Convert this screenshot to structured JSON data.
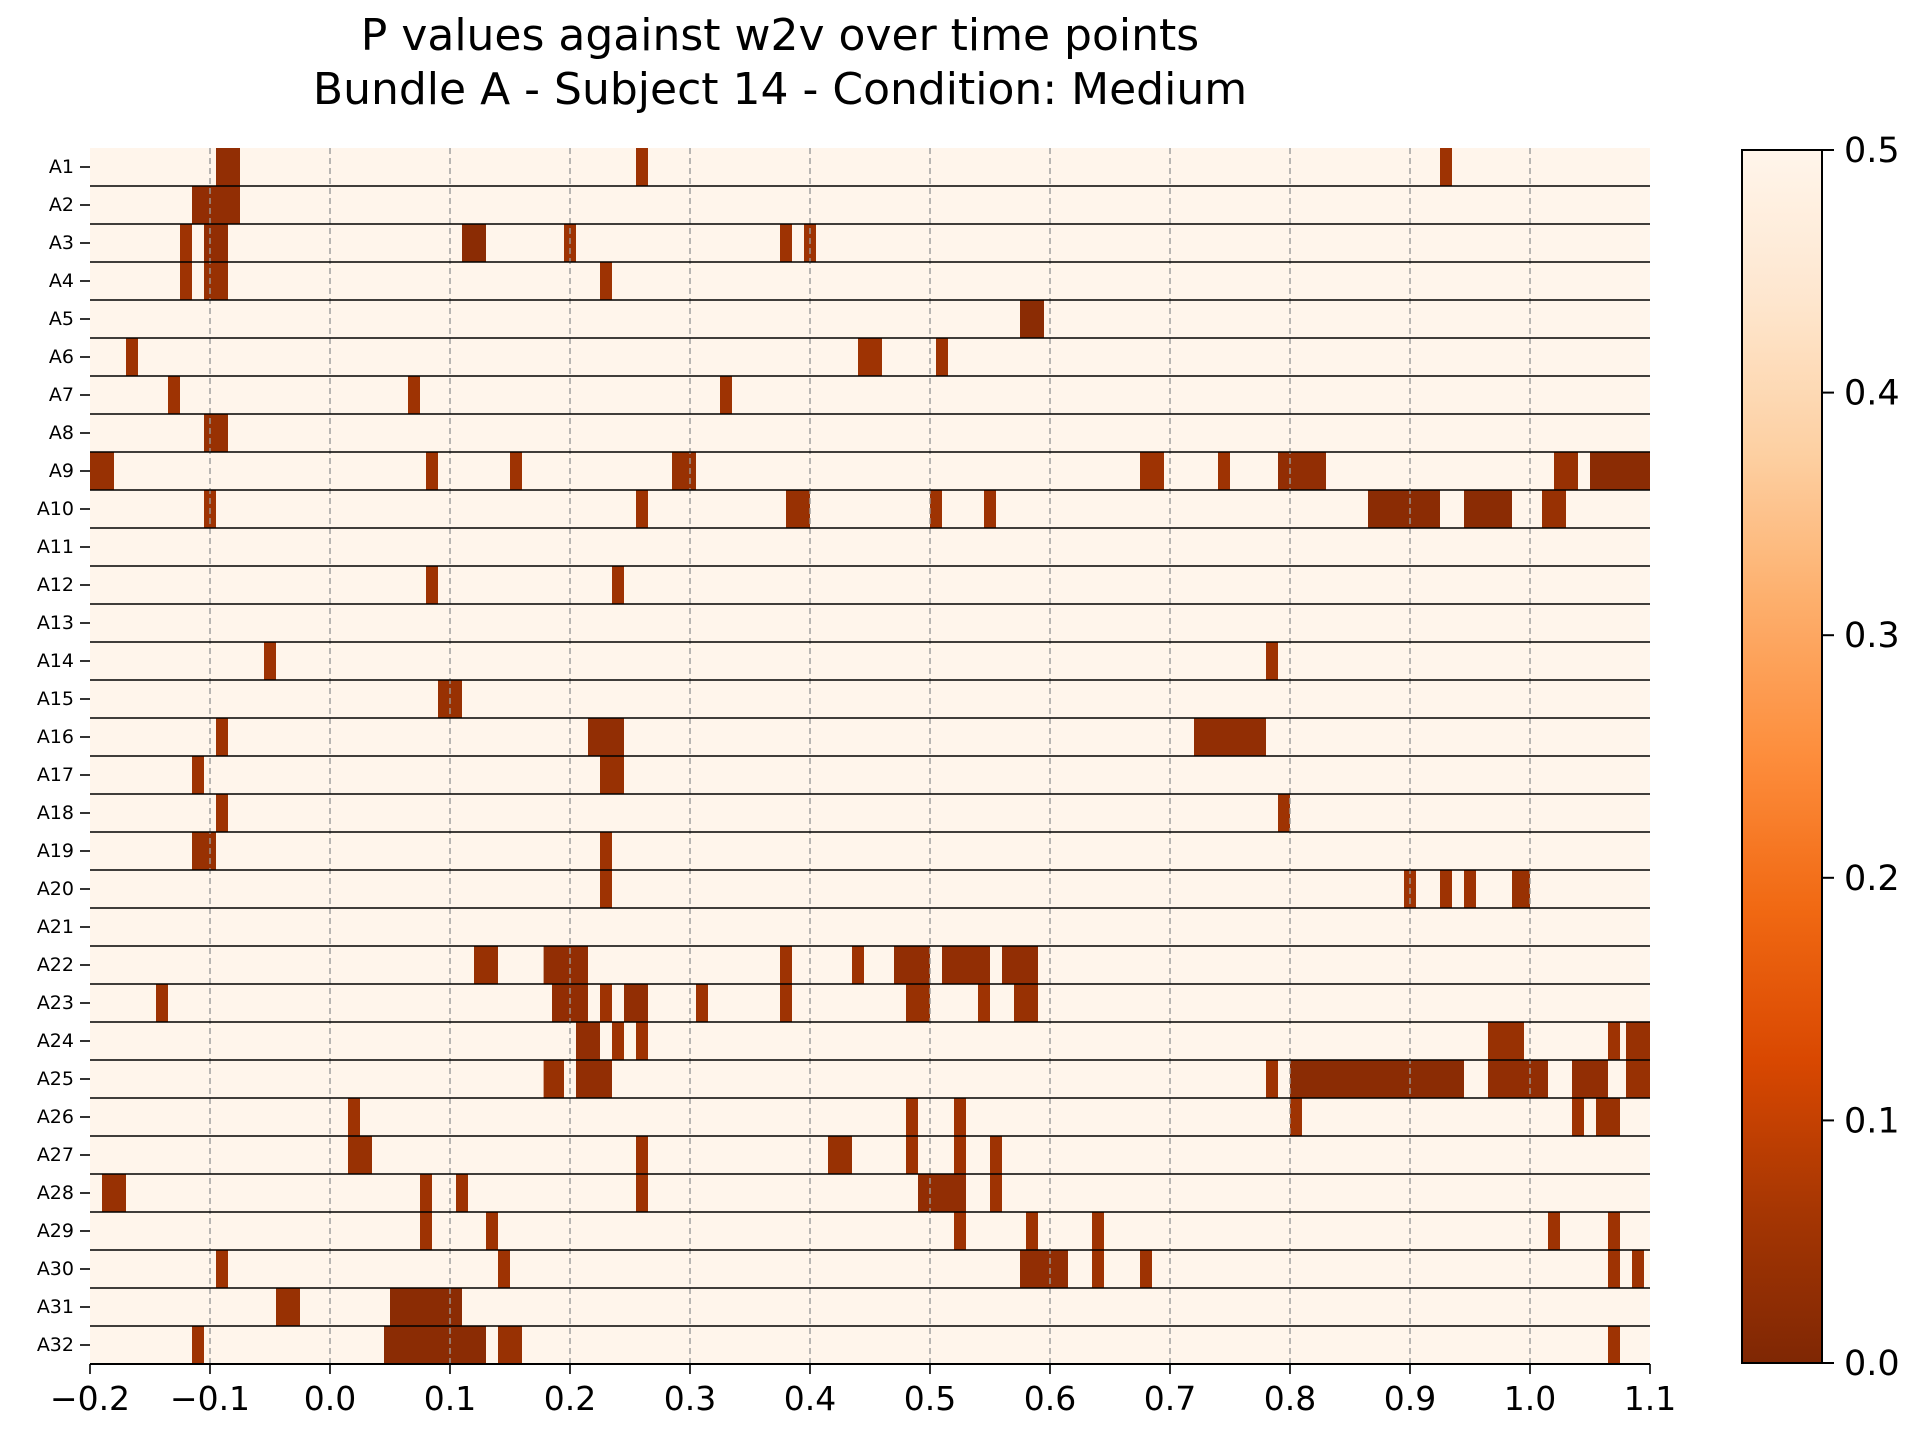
{
  "chart_data": {
    "type": "heatmap",
    "title": "P values against w2v over time points",
    "subtitle": "Bundle A - Subject 14 - Condition: Medium",
    "xlabel": "",
    "ylabel": "",
    "xlim": [
      -0.2,
      1.1
    ],
    "x_ticks": [
      -0.2,
      -0.1,
      0.0,
      0.1,
      0.2,
      0.3,
      0.4,
      0.5,
      0.6,
      0.7,
      0.8,
      0.9,
      1.0,
      1.1
    ],
    "x_tick_labels": [
      "−0.2",
      "−0.1",
      "0.0",
      "0.1",
      "0.2",
      "0.3",
      "0.4",
      "0.5",
      "0.6",
      "0.7",
      "0.8",
      "0.9",
      "1.0",
      "1.1"
    ],
    "grid": "vertical dashed at x ticks",
    "rows": [
      "A1",
      "A2",
      "A3",
      "A4",
      "A5",
      "A6",
      "A7",
      "A8",
      "A9",
      "A10",
      "A11",
      "A12",
      "A13",
      "A14",
      "A15",
      "A16",
      "A17",
      "A18",
      "A19",
      "A20",
      "A21",
      "A22",
      "A23",
      "A24",
      "A25",
      "A26",
      "A27",
      "A28",
      "A29",
      "A30",
      "A31",
      "A32"
    ],
    "background_value": 0.5,
    "colormap": "Oranges_r",
    "colorbar": {
      "vmin": 0.0,
      "vmax": 0.5,
      "ticks": [
        0.0,
        0.1,
        0.2,
        0.3,
        0.4,
        0.5
      ],
      "tick_labels": [
        "0.0",
        "0.1",
        "0.2",
        "0.3",
        "0.4",
        "0.5"
      ],
      "stops": [
        "#7f2704",
        "#a63603",
        "#d94801",
        "#f16913",
        "#fd8d3c",
        "#fdae6b",
        "#fdd0a2",
        "#fee6ce",
        "#fff5eb"
      ]
    },
    "significant_segments": {
      "A1": [
        [
          -0.095,
          -0.075,
          0.03
        ],
        [
          0.255,
          0.265,
          0.05
        ],
        [
          0.925,
          0.935,
          0.05
        ]
      ],
      "A2": [
        [
          -0.115,
          -0.075,
          0.03
        ]
      ],
      "A3": [
        [
          -0.125,
          -0.115,
          0.05
        ],
        [
          -0.105,
          -0.085,
          0.03
        ],
        [
          0.11,
          0.13,
          0.02
        ],
        [
          0.195,
          0.205,
          0.05
        ],
        [
          0.375,
          0.385,
          0.05
        ],
        [
          0.395,
          0.405,
          0.05
        ]
      ],
      "A4": [
        [
          -0.125,
          -0.115,
          0.05
        ],
        [
          -0.105,
          -0.085,
          0.04
        ],
        [
          0.225,
          0.235,
          0.05
        ]
      ],
      "A5": [
        [
          0.575,
          0.595,
          0.02
        ]
      ],
      "A6": [
        [
          -0.17,
          -0.16,
          0.05
        ],
        [
          0.44,
          0.46,
          0.05
        ],
        [
          0.505,
          0.515,
          0.05
        ]
      ],
      "A7": [
        [
          -0.135,
          -0.125,
          0.05
        ],
        [
          0.065,
          0.075,
          0.05
        ],
        [
          0.325,
          0.335,
          0.05
        ]
      ],
      "A8": [
        [
          -0.105,
          -0.085,
          0.04
        ]
      ],
      "A9": [
        [
          -0.2,
          -0.18,
          0.04
        ],
        [
          0.08,
          0.09,
          0.05
        ],
        [
          0.15,
          0.16,
          0.05
        ],
        [
          0.285,
          0.305,
          0.04
        ],
        [
          0.675,
          0.695,
          0.05
        ],
        [
          0.74,
          0.75,
          0.05
        ],
        [
          0.79,
          0.83,
          0.03
        ],
        [
          1.02,
          1.04,
          0.04
        ],
        [
          1.05,
          1.1,
          0.02
        ]
      ],
      "A10": [
        [
          -0.105,
          -0.095,
          0.05
        ],
        [
          0.255,
          0.265,
          0.05
        ],
        [
          0.38,
          0.4,
          0.04
        ],
        [
          0.5,
          0.51,
          0.05
        ],
        [
          0.545,
          0.555,
          0.05
        ],
        [
          0.865,
          0.925,
          0.02
        ],
        [
          0.945,
          0.985,
          0.02
        ],
        [
          1.01,
          1.03,
          0.04
        ]
      ],
      "A11": [],
      "A12": [
        [
          0.08,
          0.09,
          0.05
        ],
        [
          0.235,
          0.245,
          0.05
        ]
      ],
      "A13": [],
      "A14": [
        [
          -0.055,
          -0.045,
          0.05
        ],
        [
          0.78,
          0.79,
          0.05
        ]
      ],
      "A15": [
        [
          0.09,
          0.11,
          0.04
        ]
      ],
      "A16": [
        [
          -0.095,
          -0.085,
          0.05
        ],
        [
          0.215,
          0.245,
          0.03
        ],
        [
          0.72,
          0.78,
          0.03
        ]
      ],
      "A17": [
        [
          -0.115,
          -0.105,
          0.05
        ],
        [
          0.225,
          0.245,
          0.04
        ]
      ],
      "A18": [
        [
          -0.095,
          -0.085,
          0.05
        ],
        [
          0.79,
          0.8,
          0.05
        ]
      ],
      "A19": [
        [
          -0.115,
          -0.095,
          0.04
        ],
        [
          0.225,
          0.235,
          0.05
        ]
      ],
      "A20": [
        [
          0.225,
          0.235,
          0.05
        ],
        [
          0.895,
          0.905,
          0.05
        ],
        [
          0.925,
          0.935,
          0.05
        ],
        [
          0.945,
          0.955,
          0.05
        ],
        [
          0.985,
          1.0,
          0.04
        ]
      ],
      "A21": [],
      "A22": [
        [
          0.12,
          0.14,
          0.04
        ],
        [
          0.178,
          0.215,
          0.03
        ],
        [
          0.375,
          0.385,
          0.05
        ],
        [
          0.435,
          0.445,
          0.05
        ],
        [
          0.47,
          0.5,
          0.03
        ],
        [
          0.51,
          0.55,
          0.03
        ],
        [
          0.56,
          0.59,
          0.03
        ]
      ],
      "A23": [
        [
          -0.145,
          -0.135,
          0.05
        ],
        [
          0.185,
          0.215,
          0.03
        ],
        [
          0.225,
          0.235,
          0.05
        ],
        [
          0.245,
          0.265,
          0.03
        ],
        [
          0.305,
          0.315,
          0.05
        ],
        [
          0.375,
          0.385,
          0.05
        ],
        [
          0.48,
          0.5,
          0.04
        ],
        [
          0.54,
          0.55,
          0.05
        ],
        [
          0.57,
          0.59,
          0.04
        ]
      ],
      "A24": [
        [
          0.205,
          0.225,
          0.03
        ],
        [
          0.235,
          0.245,
          0.05
        ],
        [
          0.255,
          0.265,
          0.05
        ],
        [
          0.965,
          0.995,
          0.04
        ],
        [
          1.065,
          1.075,
          0.05
        ],
        [
          1.08,
          1.1,
          0.04
        ]
      ],
      "A25": [
        [
          0.178,
          0.195,
          0.04
        ],
        [
          0.205,
          0.235,
          0.03
        ],
        [
          0.78,
          0.79,
          0.05
        ],
        [
          0.8,
          0.945,
          0.02
        ],
        [
          0.965,
          1.015,
          0.03
        ],
        [
          1.035,
          1.065,
          0.03
        ],
        [
          1.08,
          1.1,
          0.04
        ]
      ],
      "A26": [
        [
          0.015,
          0.025,
          0.05
        ],
        [
          0.48,
          0.49,
          0.05
        ],
        [
          0.52,
          0.53,
          0.05
        ],
        [
          0.8,
          0.81,
          0.05
        ],
        [
          1.035,
          1.045,
          0.05
        ],
        [
          1.055,
          1.075,
          0.04
        ]
      ],
      "A27": [
        [
          0.015,
          0.035,
          0.04
        ],
        [
          0.255,
          0.265,
          0.05
        ],
        [
          0.415,
          0.435,
          0.04
        ],
        [
          0.48,
          0.49,
          0.05
        ],
        [
          0.52,
          0.53,
          0.05
        ],
        [
          0.55,
          0.56,
          0.05
        ]
      ],
      "A28": [
        [
          -0.19,
          -0.17,
          0.04
        ],
        [
          0.075,
          0.085,
          0.05
        ],
        [
          0.105,
          0.115,
          0.05
        ],
        [
          0.255,
          0.265,
          0.05
        ],
        [
          0.49,
          0.53,
          0.03
        ],
        [
          0.55,
          0.56,
          0.05
        ]
      ],
      "A29": [
        [
          0.075,
          0.085,
          0.05
        ],
        [
          0.13,
          0.14,
          0.05
        ],
        [
          0.52,
          0.53,
          0.05
        ],
        [
          0.58,
          0.59,
          0.05
        ],
        [
          0.635,
          0.645,
          0.05
        ],
        [
          1.015,
          1.025,
          0.05
        ],
        [
          1.065,
          1.075,
          0.05
        ]
      ],
      "A30": [
        [
          -0.095,
          -0.085,
          0.05
        ],
        [
          0.14,
          0.15,
          0.05
        ],
        [
          0.575,
          0.615,
          0.03
        ],
        [
          0.635,
          0.645,
          0.05
        ],
        [
          0.675,
          0.685,
          0.05
        ],
        [
          1.065,
          1.075,
          0.05
        ],
        [
          1.085,
          1.095,
          0.05
        ]
      ],
      "A31": [
        [
          -0.045,
          -0.025,
          0.04
        ],
        [
          0.05,
          0.11,
          0.02
        ]
      ],
      "A32": [
        [
          -0.115,
          -0.105,
          0.05
        ],
        [
          0.045,
          0.13,
          0.02
        ],
        [
          0.14,
          0.16,
          0.04
        ],
        [
          1.065,
          1.075,
          0.05
        ]
      ]
    }
  }
}
